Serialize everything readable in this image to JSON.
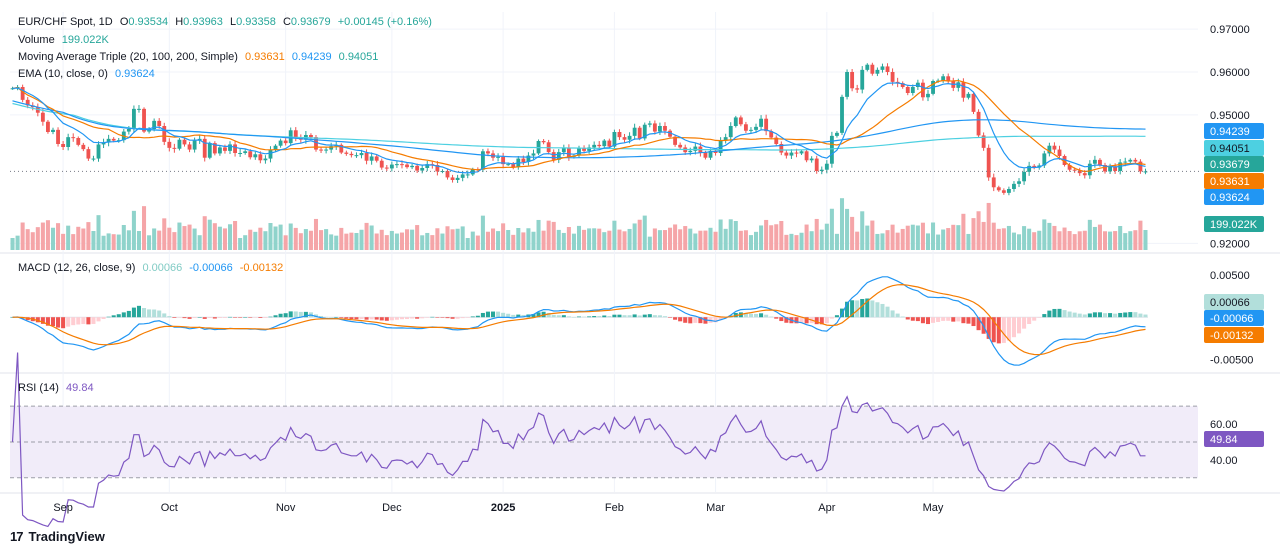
{
  "header": {
    "symbol": "EUR/CHF Spot, 1D",
    "o_label": "O",
    "o": "0.93534",
    "h_label": "H",
    "h": "0.93963",
    "l_label": "L",
    "l": "0.93358",
    "c_label": "C",
    "c": "0.93679",
    "change": "+0.00145 (+0.16%)"
  },
  "legend": {
    "volume_label": "Volume",
    "volume_value": "199.022K",
    "ma_label": "Moving Average Triple (20, 100, 200, Simple)",
    "ma20": "0.93631",
    "ma100": "0.94239",
    "ma200": "0.94051",
    "ema_label": "EMA (10, close, 0)",
    "ema_value": "0.93624",
    "macd_label": "MACD (12, 26, close, 9)",
    "macd_hist": "0.00066",
    "macd_line": "-0.00066",
    "macd_signal": "-0.00132",
    "rsi_label": "RSI (14)",
    "rsi_value": "49.84"
  },
  "colors": {
    "up": "#26a69a",
    "down": "#ef5350",
    "vol_up": "#8fd3cb",
    "vol_down": "#f5a5a8",
    "ma20": "#f57c00",
    "ma100": "#2196f3",
    "ma200": "#4dd0e1",
    "ema": "#2196f3",
    "macd": "#2196f3",
    "signal": "#f57c00",
    "rsi": "#7e57c2",
    "rsi_band": "#f1ecf9"
  },
  "badges": {
    "price": [
      {
        "text": "0.94239",
        "color": "#2196f3",
        "text_color": "#ffffff"
      },
      {
        "text": "0.94051",
        "color": "#4dd0e1",
        "text_color": "#131722"
      },
      {
        "text": "0.93679",
        "color": "#26a69a",
        "text_color": "#ffffff"
      },
      {
        "text": "0.93631",
        "color": "#f57c00",
        "text_color": "#ffffff"
      },
      {
        "text": "0.93624",
        "color": "#2196f3",
        "text_color": "#ffffff"
      },
      {
        "text": "199.022K",
        "color": "#26a69a",
        "text_color": "#ffffff"
      }
    ],
    "macd": [
      {
        "text": "0.00066",
        "color": "#b2dfdb",
        "text_color": "#131722"
      },
      {
        "text": "-0.00066",
        "color": "#2196f3",
        "text_color": "#ffffff"
      },
      {
        "text": "-0.00132",
        "color": "#f57c00",
        "text_color": "#ffffff"
      }
    ],
    "rsi": [
      {
        "text": "49.84",
        "color": "#7e57c2",
        "text_color": "#ffffff"
      }
    ]
  },
  "logo_text": "TradingView",
  "chart_data": {
    "type": "candlestick",
    "price_axis": {
      "ticks": [
        {
          "value": 0.97,
          "label": "0.97000"
        },
        {
          "value": 0.96,
          "label": "0.96000"
        },
        {
          "value": 0.95,
          "label": "0.95000"
        },
        {
          "value": 0.92,
          "label": "0.92000"
        }
      ],
      "range": [
        0.918,
        0.974
      ]
    },
    "macd_axis": {
      "ticks": [
        {
          "value": 0.005,
          "label": "0.00500"
        },
        {
          "value": -0.005,
          "label": "-0.00500"
        }
      ],
      "range": [
        -0.0065,
        0.0075
      ]
    },
    "rsi_axis": {
      "ticks": [
        {
          "value": 60,
          "label": "60.00"
        },
        {
          "value": 40,
          "label": "40.00"
        }
      ],
      "range": [
        22,
        88
      ],
      "bands": [
        70,
        50,
        30
      ]
    },
    "x_axis": {
      "count": 192,
      "labels": [
        {
          "index": 10,
          "label": "Sep",
          "bold": false
        },
        {
          "index": 31,
          "label": "Oct",
          "bold": false
        },
        {
          "index": 54,
          "label": "Nov",
          "bold": false
        },
        {
          "index": 75,
          "label": "Dec",
          "bold": false
        },
        {
          "index": 97,
          "label": "2025",
          "bold": true
        },
        {
          "index": 119,
          "label": "Feb",
          "bold": false
        },
        {
          "index": 139,
          "label": "Mar",
          "bold": false
        },
        {
          "index": 161,
          "label": "Apr",
          "bold": false
        },
        {
          "index": 182,
          "label": "May",
          "bold": false
        }
      ]
    },
    "close": [
      0.9562,
      0.9565,
      0.9535,
      0.9522,
      0.9518,
      0.9505,
      0.9484,
      0.946,
      0.9465,
      0.9432,
      0.9425,
      0.9448,
      0.9446,
      0.943,
      0.942,
      0.9398,
      0.9398,
      0.9431,
      0.9436,
      0.9444,
      0.944,
      0.9441,
      0.9461,
      0.9467,
      0.9514,
      0.9514,
      0.9461,
      0.9467,
      0.9486,
      0.9474,
      0.9437,
      0.9423,
      0.9421,
      0.9442,
      0.9431,
      0.9419,
      0.944,
      0.9444,
      0.94,
      0.9434,
      0.941,
      0.9424,
      0.9416,
      0.9431,
      0.9411,
      0.9411,
      0.9415,
      0.9401,
      0.9408,
      0.9394,
      0.9398,
      0.9418,
      0.9428,
      0.944,
      0.9434,
      0.9464,
      0.9446,
      0.9442,
      0.9453,
      0.9448,
      0.9419,
      0.9417,
      0.9419,
      0.9427,
      0.943,
      0.9412,
      0.9409,
      0.9406,
      0.9406,
      0.9411,
      0.9393,
      0.9403,
      0.9393,
      0.9377,
      0.9375,
      0.9384,
      0.9385,
      0.9384,
      0.9378,
      0.9381,
      0.937,
      0.9376,
      0.9385,
      0.9383,
      0.9368,
      0.9369,
      0.9354,
      0.9348,
      0.9353,
      0.9361,
      0.9361,
      0.9373,
      0.9372,
      0.9415,
      0.941,
      0.94,
      0.9402,
      0.9385,
      0.9385,
      0.9378,
      0.9398,
      0.939,
      0.9405,
      0.941,
      0.9439,
      0.9436,
      0.9413,
      0.9395,
      0.9413,
      0.9422,
      0.9402,
      0.9405,
      0.9423,
      0.9416,
      0.9424,
      0.943,
      0.9427,
      0.944,
      0.9426,
      0.946,
      0.9448,
      0.9442,
      0.9451,
      0.947,
      0.9445,
      0.9477,
      0.948,
      0.9461,
      0.9474,
      0.9463,
      0.9449,
      0.943,
      0.9424,
      0.9413,
      0.9416,
      0.9426,
      0.9412,
      0.94,
      0.9416,
      0.9411,
      0.9441,
      0.9448,
      0.9474,
      0.9494,
      0.9478,
      0.9463,
      0.9465,
      0.9472,
      0.9491,
      0.9462,
      0.9447,
      0.9432,
      0.9412,
      0.9405,
      0.9412,
      0.941,
      0.9415,
      0.9394,
      0.9398,
      0.9369,
      0.9372,
      0.9386,
      0.9451,
      0.9458,
      0.9542,
      0.96,
      0.9562,
      0.9559,
      0.9605,
      0.9617,
      0.9596,
      0.9605,
      0.9613,
      0.96,
      0.9577,
      0.9574,
      0.9565,
      0.9551,
      0.9565,
      0.9575,
      0.9541,
      0.9549,
      0.9579,
      0.958,
      0.959,
      0.9579,
      0.9563,
      0.9576,
      0.954,
      0.9549,
      0.9507,
      0.9452,
      0.9423,
      0.9354,
      0.9331,
      0.9324,
      0.9318,
      0.9327,
      0.9339,
      0.9345,
      0.9367,
      0.9381,
      0.9377,
      0.9382,
      0.941,
      0.9428,
      0.9419,
      0.9404,
      0.9383,
      0.9372,
      0.937,
      0.9364,
      0.9359,
      0.9386,
      0.9395,
      0.9383,
      0.9368,
      0.938,
      0.9369,
      0.9389,
      0.9391,
      0.9395,
      0.9391,
      0.9368,
      0.9368
    ],
    "volume": [],
    "ma20": [],
    "ma100": [],
    "ma200": [],
    "ema10": []
  }
}
